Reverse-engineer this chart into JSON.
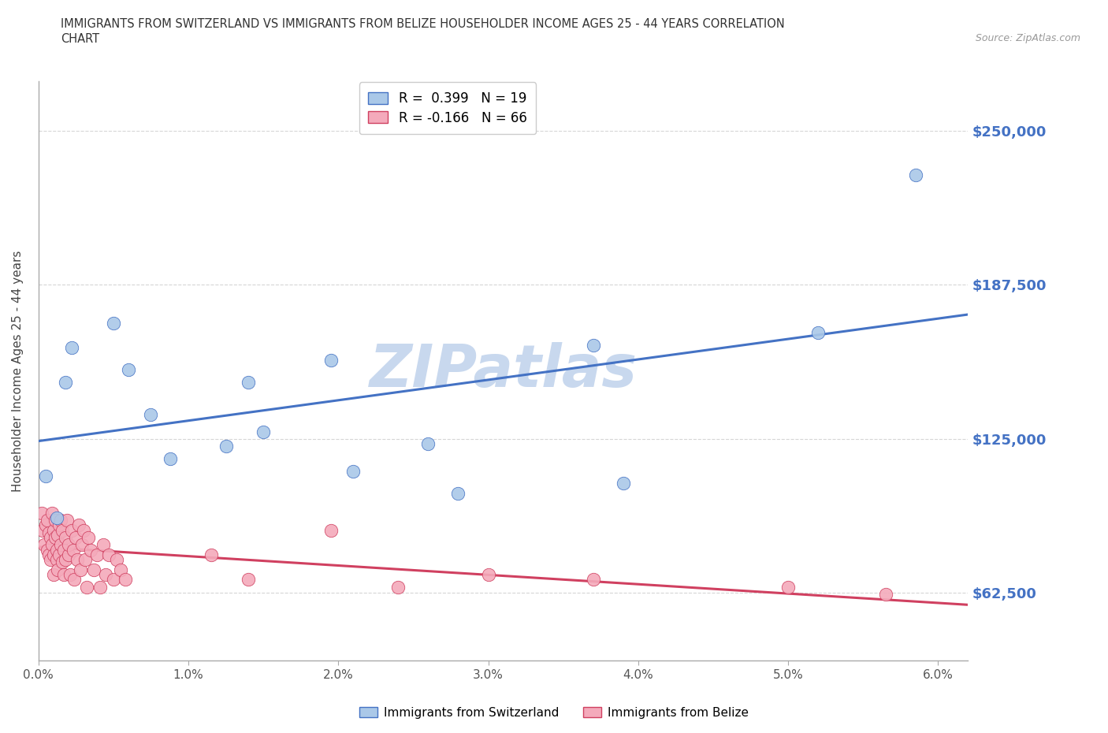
{
  "title_line1": "IMMIGRANTS FROM SWITZERLAND VS IMMIGRANTS FROM BELIZE HOUSEHOLDER INCOME AGES 25 - 44 YEARS CORRELATION",
  "title_line2": "CHART",
  "source_text": "Source: ZipAtlas.com",
  "ylabel": "Householder Income Ages 25 - 44 years",
  "xlim": [
    0.0,
    0.062
  ],
  "ylim": [
    35000,
    270000
  ],
  "xticks": [
    0.0,
    0.01,
    0.02,
    0.03,
    0.04,
    0.05,
    0.06
  ],
  "xticklabels": [
    "0.0%",
    "1.0%",
    "2.0%",
    "3.0%",
    "4.0%",
    "5.0%",
    "6.0%"
  ],
  "ytick_values": [
    62500,
    125000,
    187500,
    250000
  ],
  "ytick_labels": [
    "$62,500",
    "$125,000",
    "$187,500",
    "$250,000"
  ],
  "switzerland_R": 0.399,
  "switzerland_N": 19,
  "belize_R": -0.166,
  "belize_N": 66,
  "switzerland_color": "#aac8e8",
  "belize_color": "#f4aabb",
  "switzerland_line_color": "#4472c4",
  "belize_line_color": "#d04060",
  "grid_color": "#bbbbbb",
  "watermark_color": "#c8d8ee",
  "sw_x": [
    0.0005,
    0.0012,
    0.0018,
    0.0022,
    0.005,
    0.006,
    0.0075,
    0.0088,
    0.0125,
    0.014,
    0.015,
    0.0195,
    0.021,
    0.026,
    0.028,
    0.037,
    0.039,
    0.052,
    0.0585
  ],
  "sw_y": [
    110000,
    93000,
    148000,
    162000,
    172000,
    153000,
    135000,
    117000,
    122000,
    148000,
    128000,
    157000,
    112000,
    123000,
    103000,
    163000,
    107000,
    168000,
    232000
  ],
  "bz_x": [
    0.0002,
    0.0003,
    0.0004,
    0.0005,
    0.0006,
    0.0006,
    0.0007,
    0.0007,
    0.0008,
    0.0008,
    0.0009,
    0.0009,
    0.001,
    0.001,
    0.001,
    0.0011,
    0.0011,
    0.0012,
    0.0012,
    0.0013,
    0.0013,
    0.0014,
    0.0014,
    0.0015,
    0.0015,
    0.0016,
    0.0016,
    0.0017,
    0.0017,
    0.0018,
    0.0018,
    0.0019,
    0.002,
    0.002,
    0.0021,
    0.0022,
    0.0023,
    0.0024,
    0.0025,
    0.0026,
    0.0027,
    0.0028,
    0.0029,
    0.003,
    0.0031,
    0.0032,
    0.0033,
    0.0035,
    0.0037,
    0.0039,
    0.0041,
    0.0043,
    0.0045,
    0.0047,
    0.005,
    0.0052,
    0.0055,
    0.0058,
    0.0115,
    0.014,
    0.0195,
    0.024,
    0.03,
    0.037,
    0.05,
    0.0565
  ],
  "bz_y": [
    95000,
    88000,
    82000,
    90000,
    80000,
    92000,
    78000,
    87000,
    76000,
    85000,
    95000,
    82000,
    78000,
    88000,
    70000,
    85000,
    92000,
    80000,
    76000,
    86000,
    72000,
    90000,
    78000,
    92000,
    82000,
    75000,
    88000,
    70000,
    80000,
    85000,
    76000,
    92000,
    78000,
    82000,
    70000,
    88000,
    80000,
    68000,
    85000,
    76000,
    90000,
    72000,
    82000,
    88000,
    76000,
    65000,
    85000,
    80000,
    72000,
    78000,
    65000,
    82000,
    70000,
    78000,
    68000,
    76000,
    72000,
    68000,
    78000,
    68000,
    88000,
    65000,
    70000,
    68000,
    65000,
    62000
  ]
}
